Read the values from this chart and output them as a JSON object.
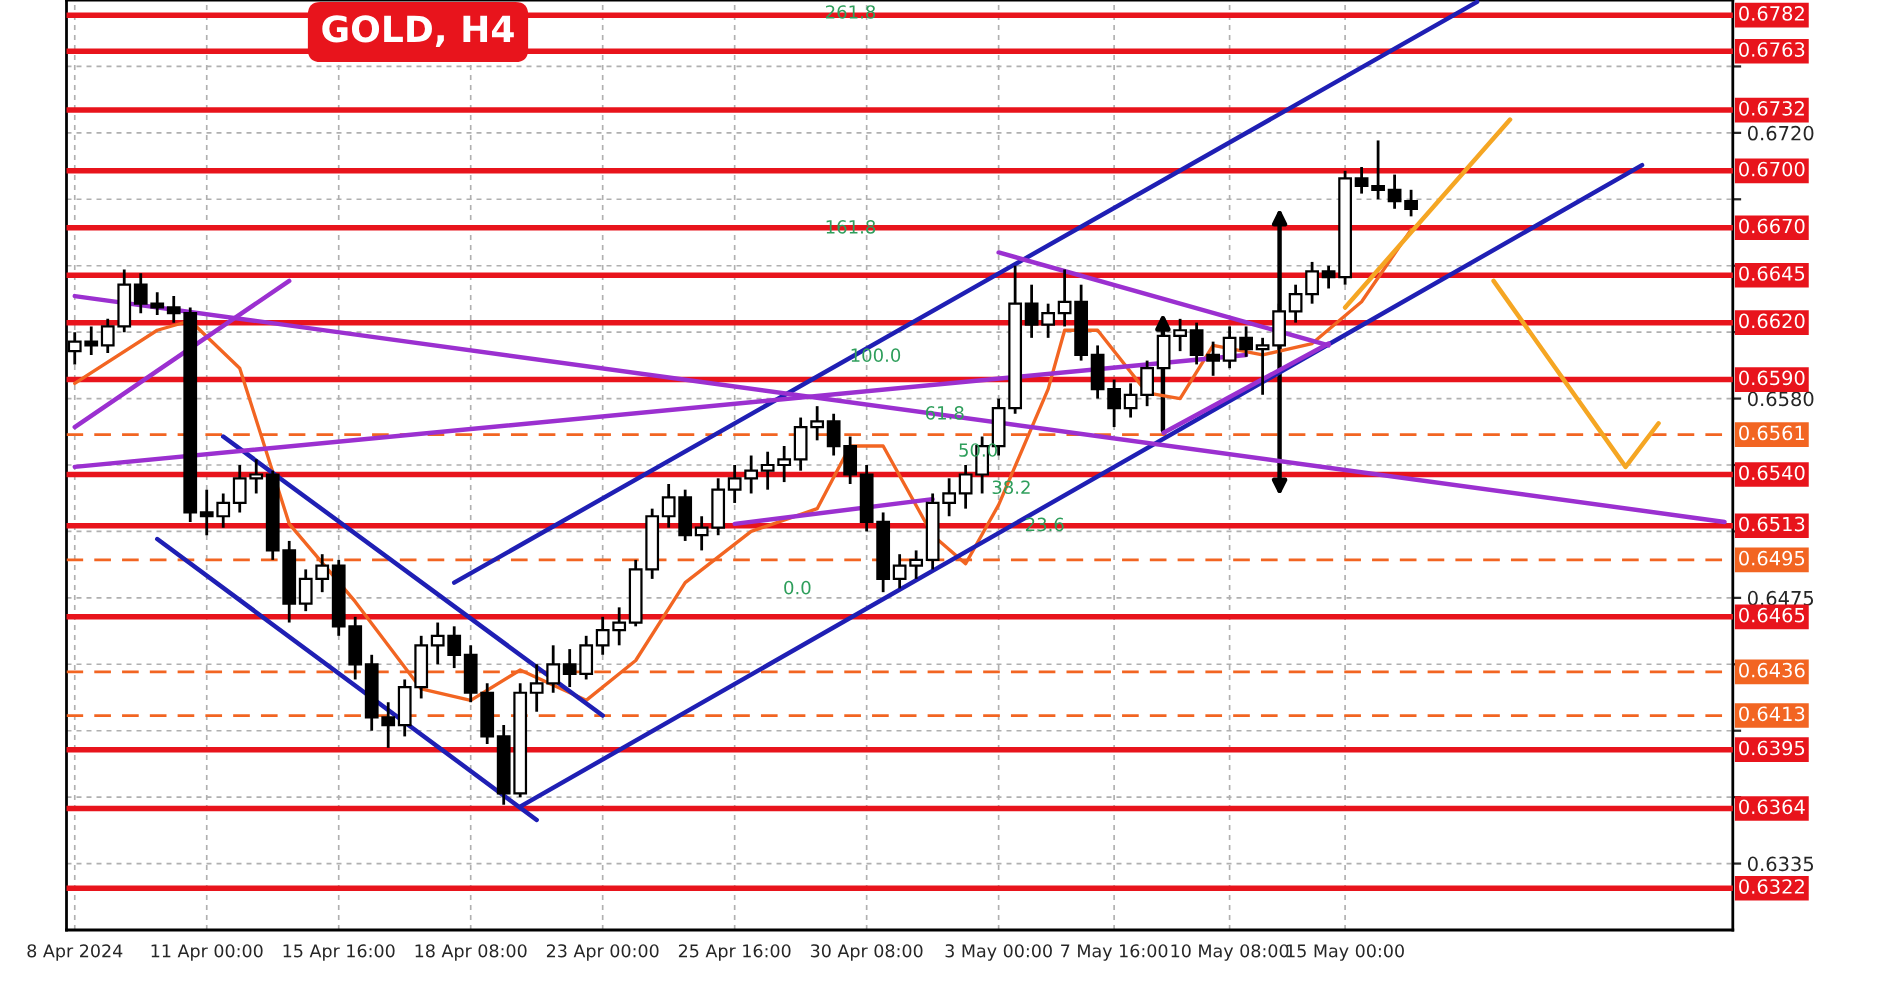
{
  "chart_data": {
    "type": "candlestick",
    "title": "GOLD, H4",
    "categories": [
      "8 Apr 2024",
      null,
      null,
      null,
      null,
      null,
      null,
      null,
      "11 Apr 00:00",
      null,
      null,
      null,
      null,
      null,
      null,
      null,
      "15 Apr 16:00",
      null,
      null,
      null,
      null,
      null,
      null,
      null,
      "18 Apr 08:00",
      null,
      null,
      null,
      null,
      null,
      null,
      null,
      "23 Apr 00:00",
      null,
      null,
      null,
      null,
      null,
      null,
      null,
      "25 Apr 16:00",
      null,
      null,
      null,
      null,
      null,
      null,
      null,
      "30 Apr 08:00",
      null,
      null,
      null,
      null,
      null,
      null,
      null,
      "3 May 00:00",
      null,
      null,
      null,
      null,
      null,
      null,
      "7 May 16:00",
      null,
      null,
      null,
      null,
      null,
      null,
      "10 May 08:00",
      null,
      null,
      null,
      null,
      null,
      null,
      "15 May 00:00",
      null,
      null,
      null,
      null,
      null,
      null,
      null,
      null,
      null,
      null,
      null,
      null,
      null,
      null,
      null,
      null,
      null,
      null,
      null,
      null,
      null,
      null,
      null
    ],
    "ylim": [
      0.63,
      0.679
    ],
    "yticks": [
      0.6335,
      {
        "value": 0.637,
        "label": null
      },
      {
        "value": 0.6405,
        "label": null
      },
      {
        "value": 0.644,
        "label": null
      },
      0.6475,
      {
        "value": 0.651,
        "label": null
      },
      {
        "value": 0.6545,
        "label": null
      },
      {
        "value": 0.658,
        "label": "0.6580"
      },
      {
        "value": 0.6615,
        "label": null
      },
      {
        "value": 0.665,
        "label": null
      },
      {
        "value": 0.6685,
        "label": null
      },
      {
        "value": 0.672,
        "label": "0.6720"
      },
      {
        "value": 0.6755,
        "label": null
      }
    ],
    "grid": true,
    "series": [
      {
        "type": "candlestick",
        "color": "#000000",
        "ohlc": [
          [
            0.6605,
            0.6615,
            0.6598,
            0.661
          ],
          [
            0.661,
            0.6618,
            0.6603,
            0.6608
          ],
          [
            0.6608,
            0.6622,
            0.6604,
            0.6618
          ],
          [
            0.6618,
            0.6648,
            0.6615,
            0.664
          ],
          [
            0.664,
            0.6646,
            0.6625,
            0.663
          ],
          [
            0.663,
            0.6636,
            0.6624,
            0.6628
          ],
          [
            0.6628,
            0.6634,
            0.662,
            0.6625
          ],
          [
            0.6625,
            0.6628,
            0.6515,
            0.652
          ],
          [
            0.652,
            0.6532,
            0.6508,
            0.6518
          ],
          [
            0.6518,
            0.653,
            0.6512,
            0.6525
          ],
          [
            0.6525,
            0.6545,
            0.652,
            0.6538
          ],
          [
            0.6538,
            0.6548,
            0.653,
            0.654
          ],
          [
            0.654,
            0.6542,
            0.6495,
            0.65
          ],
          [
            0.65,
            0.6505,
            0.6462,
            0.6472
          ],
          [
            0.6472,
            0.649,
            0.6468,
            0.6485
          ],
          [
            0.6485,
            0.6498,
            0.6478,
            0.6492
          ],
          [
            0.6492,
            0.6495,
            0.6455,
            0.646
          ],
          [
            0.646,
            0.6465,
            0.6432,
            0.644
          ],
          [
            0.644,
            0.6445,
            0.6405,
            0.6412
          ],
          [
            0.6412,
            0.642,
            0.6396,
            0.6408
          ],
          [
            0.6408,
            0.6432,
            0.6402,
            0.6428
          ],
          [
            0.6428,
            0.6455,
            0.6422,
            0.645
          ],
          [
            0.645,
            0.6462,
            0.644,
            0.6455
          ],
          [
            0.6455,
            0.646,
            0.6438,
            0.6445
          ],
          [
            0.6445,
            0.645,
            0.642,
            0.6425
          ],
          [
            0.6425,
            0.643,
            0.6398,
            0.6402
          ],
          [
            0.6402,
            0.6408,
            0.6366,
            0.6372
          ],
          [
            0.6372,
            0.643,
            0.637,
            0.6425
          ],
          [
            0.6425,
            0.644,
            0.6415,
            0.643
          ],
          [
            0.643,
            0.645,
            0.6425,
            0.644
          ],
          [
            0.644,
            0.6448,
            0.6428,
            0.6435
          ],
          [
            0.6435,
            0.6455,
            0.6432,
            0.645
          ],
          [
            0.645,
            0.6465,
            0.6445,
            0.6458
          ],
          [
            0.6458,
            0.647,
            0.645,
            0.6462
          ],
          [
            0.6462,
            0.6495,
            0.646,
            0.649
          ],
          [
            0.649,
            0.6522,
            0.6485,
            0.6518
          ],
          [
            0.6518,
            0.6535,
            0.6512,
            0.6528
          ],
          [
            0.6528,
            0.6532,
            0.6505,
            0.6508
          ],
          [
            0.6508,
            0.6518,
            0.65,
            0.6512
          ],
          [
            0.6512,
            0.6538,
            0.6508,
            0.6532
          ],
          [
            0.6532,
            0.6545,
            0.6525,
            0.6538
          ],
          [
            0.6538,
            0.655,
            0.653,
            0.6542
          ],
          [
            0.6542,
            0.6552,
            0.6532,
            0.6545
          ],
          [
            0.6545,
            0.6555,
            0.6536,
            0.6548
          ],
          [
            0.6548,
            0.657,
            0.6542,
            0.6565
          ],
          [
            0.6565,
            0.6576,
            0.6558,
            0.6568
          ],
          [
            0.6568,
            0.6572,
            0.655,
            0.6555
          ],
          [
            0.6555,
            0.656,
            0.6535,
            0.654
          ],
          [
            0.654,
            0.6545,
            0.651,
            0.6515
          ],
          [
            0.6515,
            0.652,
            0.6478,
            0.6485
          ],
          [
            0.6485,
            0.6498,
            0.648,
            0.6492
          ],
          [
            0.6492,
            0.65,
            0.6485,
            0.6495
          ],
          [
            0.6495,
            0.653,
            0.649,
            0.6525
          ],
          [
            0.6525,
            0.6538,
            0.6518,
            0.653
          ],
          [
            0.653,
            0.6545,
            0.6522,
            0.654
          ],
          [
            0.654,
            0.656,
            0.653,
            0.6555
          ],
          [
            0.6555,
            0.658,
            0.655,
            0.6575
          ],
          [
            0.6575,
            0.665,
            0.6572,
            0.663
          ],
          [
            0.663,
            0.664,
            0.6612,
            0.6619
          ],
          [
            0.6619,
            0.663,
            0.6612,
            0.6625
          ],
          [
            0.6625,
            0.6648,
            0.6618,
            0.6631
          ],
          [
            0.6631,
            0.664,
            0.66,
            0.6603
          ],
          [
            0.6603,
            0.6608,
            0.658,
            0.6585
          ],
          [
            0.6585,
            0.659,
            0.6565,
            0.6575
          ],
          [
            0.6575,
            0.6588,
            0.657,
            0.6582
          ],
          [
            0.6582,
            0.66,
            0.6576,
            0.6596
          ],
          [
            0.6596,
            0.6618,
            0.6592,
            0.6613
          ],
          [
            0.6613,
            0.6622,
            0.6605,
            0.6616
          ],
          [
            0.6616,
            0.662,
            0.6598,
            0.6603
          ],
          [
            0.6603,
            0.661,
            0.6592,
            0.66
          ],
          [
            0.66,
            0.6618,
            0.6596,
            0.6612
          ],
          [
            0.6612,
            0.6618,
            0.6602,
            0.6606
          ],
          [
            0.6606,
            0.6612,
            0.6582,
            0.6608
          ],
          [
            0.6608,
            0.663,
            0.6604,
            0.6626
          ],
          [
            0.6626,
            0.664,
            0.662,
            0.6635
          ],
          [
            0.6635,
            0.6652,
            0.663,
            0.6647
          ],
          [
            0.6647,
            0.665,
            0.6638,
            0.6644
          ],
          [
            0.6644,
            0.67,
            0.664,
            0.6696
          ],
          [
            0.6696,
            0.6702,
            0.6688,
            0.6692
          ],
          [
            0.6692,
            0.6716,
            0.6685,
            0.669
          ],
          [
            0.669,
            0.6698,
            0.668,
            0.6684
          ],
          [
            0.6684,
            0.669,
            0.6676,
            0.668
          ],
          null,
          null,
          null,
          null,
          null,
          null,
          null,
          null,
          null,
          null,
          null,
          null,
          null,
          null,
          null,
          null,
          null,
          null,
          null
        ]
      },
      {
        "type": "line",
        "color": "#f26522",
        "values": [
          0.6588,
          null,
          null,
          null,
          null,
          0.6616,
          null,
          0.6621,
          null,
          null,
          0.6596,
          null,
          null,
          0.6514,
          null,
          null,
          null,
          0.6473,
          null,
          null,
          null,
          0.6427,
          null,
          null,
          0.6421,
          null,
          null,
          0.6437,
          null,
          null,
          null,
          0.6421,
          null,
          null,
          0.6442,
          null,
          null,
          0.6483,
          null,
          null,
          null,
          0.651,
          null,
          null,
          null,
          0.6522,
          null,
          0.6555,
          null,
          0.6555,
          null,
          null,
          0.6508,
          null,
          0.6493,
          null,
          0.6524,
          null,
          null,
          0.6585,
          0.6616,
          null,
          0.6616,
          null,
          null,
          0.6583,
          null,
          0.658,
          null,
          0.6608,
          null,
          null,
          0.6603,
          null,
          null,
          0.6609,
          null,
          null,
          0.6631,
          null,
          null,
          0.6669,
          null,
          null,
          null,
          null,
          null,
          null,
          null,
          null,
          null,
          null,
          null,
          null,
          null,
          null,
          null,
          null,
          null,
          null,
          null
        ]
      },
      {
        "type": "line",
        "color": "#1f1fb4",
        "values": [
          null,
          null,
          null,
          null,
          null,
          0.6506,
          null,
          null,
          null,
          null,
          null,
          null,
          null,
          null,
          null,
          null,
          null,
          null,
          null,
          null,
          null,
          null,
          null,
          null,
          null,
          null,
          null,
          null,
          0.6358,
          null,
          null,
          null,
          null,
          null,
          null,
          null,
          null,
          null,
          null,
          null,
          null,
          null,
          null,
          null,
          null,
          null,
          null,
          null,
          null,
          null,
          null,
          null,
          null,
          null,
          null,
          null,
          null,
          null,
          null,
          null,
          null,
          null,
          null,
          null,
          null,
          null,
          null,
          null,
          null,
          null,
          null,
          null,
          null,
          null,
          null,
          null,
          null,
          null,
          null,
          null,
          null,
          null,
          null,
          null,
          null,
          null,
          null,
          null,
          null,
          null,
          null,
          null,
          null,
          null,
          null,
          null,
          null,
          null,
          null,
          null,
          null
        ]
      },
      {
        "type": "line",
        "color": "#1f1fb4",
        "values": [
          null,
          null,
          null,
          null,
          null,
          null,
          null,
          null,
          null,
          0.656,
          null,
          null,
          null,
          null,
          null,
          null,
          null,
          null,
          null,
          null,
          null,
          null,
          null,
          null,
          null,
          null,
          null,
          null,
          null,
          null,
          null,
          null,
          0.6413,
          null,
          null,
          null,
          null,
          null,
          null,
          null,
          null,
          null,
          null,
          null,
          null,
          null,
          null,
          null,
          null,
          null,
          null,
          null,
          null,
          null,
          null,
          null,
          null,
          null,
          null,
          null,
          null,
          null,
          null,
          null,
          null,
          null,
          null,
          null,
          null,
          null,
          null,
          null,
          null,
          null,
          null,
          null,
          null,
          null,
          null,
          null,
          null,
          null,
          null,
          null,
          null,
          null,
          null,
          null,
          null,
          null,
          null,
          null,
          null,
          null,
          null,
          null,
          null,
          null,
          null,
          null,
          null
        ]
      },
      {
        "type": "line",
        "color": "#1f1fb4",
        "values": [
          null,
          null,
          null,
          null,
          null,
          null,
          null,
          null,
          null,
          null,
          null,
          null,
          null,
          null,
          null,
          null,
          null,
          null,
          null,
          null,
          null,
          null,
          null,
          0.6483,
          null,
          null,
          null,
          null,
          null,
          null,
          null,
          null,
          null,
          null,
          null,
          null,
          null,
          null,
          null,
          null,
          null,
          null,
          null,
          null,
          null,
          null,
          null,
          null,
          null,
          null,
          null,
          null,
          null,
          null,
          null,
          null,
          null,
          null,
          null,
          null,
          null,
          null,
          null,
          null,
          null,
          null,
          null,
          null,
          null,
          null,
          null,
          null,
          null,
          null,
          null,
          null,
          null,
          null,
          null,
          null,
          null,
          null,
          null,
          null,
          null,
          0.6789,
          null,
          null,
          null,
          null,
          null,
          null,
          null,
          null,
          null,
          null,
          null,
          null,
          null,
          null,
          null
        ]
      },
      {
        "type": "line",
        "color": "#1f1fb4",
        "values": [
          null,
          null,
          null,
          null,
          null,
          null,
          null,
          null,
          null,
          null,
          null,
          null,
          null,
          null,
          null,
          null,
          null,
          null,
          null,
          null,
          null,
          null,
          null,
          null,
          null,
          null,
          null,
          0.6365,
          null,
          null,
          null,
          null,
          null,
          null,
          null,
          null,
          null,
          null,
          null,
          null,
          null,
          null,
          null,
          null,
          null,
          null,
          null,
          null,
          null,
          null,
          null,
          null,
          null,
          null,
          null,
          null,
          null,
          null,
          null,
          null,
          null,
          null,
          null,
          null,
          null,
          null,
          null,
          null,
          null,
          null,
          null,
          null,
          null,
          null,
          null,
          null,
          null,
          null,
          null,
          null,
          null,
          null,
          null,
          null,
          null,
          null,
          null,
          null,
          null,
          null,
          null,
          null,
          null,
          null,
          null,
          0.6703,
          null,
          null,
          null,
          null,
          null
        ]
      },
      {
        "type": "line",
        "color": "#9b30d0",
        "values": [
          0.6634,
          null,
          null,
          null,
          null,
          null,
          null,
          null,
          null,
          null,
          null,
          null,
          null,
          null,
          null,
          null,
          null,
          null,
          null,
          null,
          null,
          null,
          null,
          null,
          null,
          null,
          null,
          null,
          null,
          null,
          null,
          null,
          null,
          null,
          null,
          null,
          null,
          null,
          null,
          null,
          null,
          null,
          null,
          null,
          null,
          null,
          null,
          null,
          null,
          null,
          null,
          null,
          null,
          null,
          null,
          null,
          null,
          null,
          null,
          null,
          null,
          null,
          null,
          null,
          null,
          null,
          null,
          null,
          null,
          null,
          null,
          null,
          null,
          null,
          null,
          null,
          null,
          null,
          null,
          null,
          null,
          null,
          null,
          null,
          null,
          null,
          null,
          null,
          null,
          null,
          null,
          null,
          null,
          null,
          null,
          null,
          null,
          null,
          null,
          null,
          0.6515
        ]
      },
      {
        "type": "line",
        "color": "#9b30d0",
        "values": [
          0.6544,
          null,
          null,
          null,
          null,
          null,
          null,
          null,
          null,
          null,
          null,
          null,
          null,
          null,
          null,
          null,
          null,
          null,
          null,
          null,
          null,
          null,
          null,
          null,
          null,
          null,
          null,
          null,
          null,
          null,
          null,
          null,
          null,
          null,
          null,
          null,
          null,
          null,
          null,
          null,
          null,
          null,
          null,
          null,
          null,
          null,
          null,
          null,
          null,
          null,
          null,
          null,
          null,
          null,
          null,
          null,
          null,
          null,
          null,
          null,
          null,
          null,
          null,
          null,
          null,
          null,
          null,
          null,
          null,
          null,
          null,
          0.6603,
          null,
          null,
          null,
          null,
          null,
          null,
          null,
          null,
          null,
          null,
          null,
          null,
          null,
          null,
          null,
          null,
          null,
          null,
          null,
          null,
          null,
          null,
          null,
          null,
          null,
          null,
          null,
          null,
          null
        ]
      },
      {
        "type": "line",
        "color": "#9b30d0",
        "values": [
          0.6565,
          null,
          null,
          null,
          null,
          null,
          null,
          null,
          null,
          null,
          null,
          null,
          null,
          0.6642,
          null,
          null,
          null,
          null,
          null,
          null,
          null,
          null,
          null,
          null,
          null,
          null,
          null,
          null,
          null,
          null,
          null,
          null,
          null,
          null,
          null,
          null,
          null,
          null,
          null,
          null,
          null,
          null,
          null,
          null,
          null,
          null,
          null,
          null,
          null,
          null,
          null,
          null,
          null,
          null,
          null,
          null,
          null,
          null,
          null,
          null,
          null,
          null,
          null,
          null,
          null,
          null,
          null,
          null,
          null,
          null,
          null,
          null,
          null,
          null,
          null,
          null,
          null,
          null,
          null,
          null,
          null,
          null,
          null,
          null,
          null,
          null,
          null,
          null,
          null,
          null,
          null,
          null,
          null,
          null,
          null,
          null,
          null,
          null,
          null,
          null,
          null
        ]
      },
      {
        "type": "line",
        "color": "#9b30d0",
        "values": [
          null,
          null,
          null,
          null,
          null,
          null,
          null,
          null,
          null,
          null,
          null,
          null,
          null,
          null,
          null,
          null,
          null,
          null,
          null,
          null,
          null,
          null,
          null,
          null,
          null,
          null,
          null,
          null,
          null,
          null,
          null,
          null,
          null,
          null,
          null,
          null,
          null,
          null,
          null,
          null,
          null,
          null,
          null,
          null,
          null,
          null,
          null,
          null,
          null,
          null,
          null,
          null,
          null,
          null,
          null,
          null,
          0.6657,
          null,
          null,
          null,
          null,
          null,
          null,
          null,
          null,
          null,
          null,
          null,
          null,
          null,
          null,
          null,
          null,
          null,
          null,
          null,
          0.6608,
          null,
          null,
          null,
          null,
          null,
          null,
          null,
          null,
          null,
          null,
          null,
          null,
          null,
          null,
          null,
          null,
          null,
          null,
          null,
          null,
          null,
          null,
          null,
          null
        ]
      },
      {
        "type": "line",
        "color": "#9b30d0",
        "values": [
          null,
          null,
          null,
          null,
          null,
          null,
          null,
          null,
          null,
          null,
          null,
          null,
          null,
          null,
          null,
          null,
          null,
          null,
          null,
          null,
          null,
          null,
          null,
          null,
          null,
          null,
          null,
          null,
          null,
          null,
          null,
          null,
          null,
          null,
          null,
          null,
          null,
          null,
          null,
          null,
          null,
          null,
          null,
          null,
          null,
          null,
          null,
          null,
          null,
          null,
          null,
          null,
          null,
          null,
          null,
          null,
          null,
          null,
          null,
          null,
          null,
          null,
          null,
          null,
          null,
          null,
          0.6562,
          null,
          null,
          null,
          null,
          null,
          null,
          null,
          null,
          null,
          0.6609,
          null,
          null,
          null,
          null,
          null,
          null,
          null,
          null,
          null,
          null,
          null,
          null,
          null,
          null,
          null,
          null,
          null,
          null,
          null,
          null,
          null,
          null,
          null,
          null
        ]
      },
      {
        "type": "line",
        "color": "#9b30d0",
        "values": [
          null,
          null,
          null,
          null,
          null,
          null,
          null,
          null,
          null,
          null,
          null,
          null,
          null,
          null,
          null,
          null,
          null,
          null,
          null,
          null,
          null,
          null,
          null,
          null,
          null,
          null,
          null,
          null,
          null,
          null,
          null,
          null,
          null,
          null,
          null,
          null,
          null,
          null,
          null,
          null,
          0.6514,
          null,
          null,
          null,
          null,
          null,
          null,
          null,
          null,
          null,
          null,
          null,
          0.6527,
          null,
          null,
          null,
          null,
          null,
          null,
          null,
          null,
          null,
          null,
          null,
          null,
          null,
          null,
          null,
          null,
          null,
          null,
          null,
          null,
          null,
          null,
          null,
          null,
          null,
          null,
          null,
          null,
          null,
          null,
          null,
          null,
          null,
          null,
          null,
          null,
          null,
          null,
          null,
          null,
          null,
          null,
          null,
          null,
          null,
          null,
          null,
          null
        ]
      },
      {
        "type": "line",
        "color": "#f5a623",
        "values": [
          null,
          null,
          null,
          null,
          null,
          null,
          null,
          null,
          null,
          null,
          null,
          null,
          null,
          null,
          null,
          null,
          null,
          null,
          null,
          null,
          null,
          null,
          null,
          null,
          null,
          null,
          null,
          null,
          null,
          null,
          null,
          null,
          null,
          null,
          null,
          null,
          null,
          null,
          null,
          null,
          null,
          null,
          null,
          null,
          null,
          null,
          null,
          null,
          null,
          null,
          null,
          null,
          null,
          null,
          null,
          null,
          null,
          null,
          null,
          null,
          null,
          null,
          null,
          null,
          null,
          null,
          null,
          null,
          null,
          null,
          null,
          null,
          null,
          null,
          null,
          null,
          null,
          0.6628,
          null,
          null,
          null,
          null,
          null,
          null,
          null,
          null,
          null,
          0.6727,
          null,
          null,
          null,
          null,
          null,
          null,
          null,
          null,
          null,
          null,
          null,
          null,
          null
        ]
      },
      {
        "type": "line",
        "color": "#f5a623",
        "values": [
          null,
          null,
          null,
          null,
          null,
          null,
          null,
          null,
          null,
          null,
          null,
          null,
          null,
          null,
          null,
          null,
          null,
          null,
          null,
          null,
          null,
          null,
          null,
          null,
          null,
          null,
          null,
          null,
          null,
          null,
          null,
          null,
          null,
          null,
          null,
          null,
          null,
          null,
          null,
          null,
          null,
          null,
          null,
          null,
          null,
          null,
          null,
          null,
          null,
          null,
          null,
          null,
          null,
          null,
          null,
          null,
          null,
          null,
          null,
          null,
          null,
          null,
          null,
          null,
          null,
          null,
          null,
          null,
          null,
          null,
          null,
          null,
          null,
          null,
          null,
          null,
          null,
          null,
          null,
          null,
          null,
          null,
          null,
          null,
          null,
          null,
          0.6642,
          null,
          null,
          null,
          null,
          null,
          null,
          null,
          0.6544,
          null,
          0.6567,
          null,
          null,
          null,
          null
        ]
      }
    ],
    "ref_lines": [
      {
        "axis": "y",
        "value": 0.6782,
        "label": "0.6782",
        "color": "#e8141c",
        "line_style": "solid"
      },
      {
        "axis": "y",
        "value": 0.6763,
        "label": "0.6763",
        "color": "#e8141c",
        "line_style": "solid"
      },
      {
        "axis": "y",
        "value": 0.6732,
        "label": "0.6732",
        "color": "#e8141c",
        "line_style": "solid"
      },
      {
        "axis": "y",
        "value": 0.67,
        "label": "0.6700",
        "color": "#e8141c",
        "line_style": "solid"
      },
      {
        "axis": "y",
        "value": 0.667,
        "label": "0.6670",
        "color": "#e8141c",
        "line_style": "solid"
      },
      {
        "axis": "y",
        "value": 0.6645,
        "label": "0.6645",
        "color": "#e8141c",
        "line_style": "solid"
      },
      {
        "axis": "y",
        "value": 0.662,
        "label": "0.6620",
        "color": "#e8141c",
        "line_style": "solid"
      },
      {
        "axis": "y",
        "value": 0.659,
        "label": "0.6590",
        "color": "#e8141c",
        "line_style": "solid"
      },
      {
        "axis": "y",
        "value": 0.6561,
        "label": "0.6561",
        "color": "#f26522",
        "line_style": "dashed"
      },
      {
        "axis": "y",
        "value": 0.654,
        "label": "0.6540",
        "color": "#e8141c",
        "line_style": "solid"
      },
      {
        "axis": "y",
        "value": 0.6513,
        "label": "0.6513",
        "color": "#e8141c",
        "line_style": "solid"
      },
      {
        "axis": "y",
        "value": 0.6495,
        "label": "0.6495",
        "color": "#f26522",
        "line_style": "dashed"
      },
      {
        "axis": "y",
        "value": 0.6465,
        "label": "0.6465",
        "color": "#e8141c",
        "line_style": "solid"
      },
      {
        "axis": "y",
        "value": 0.6436,
        "label": "0.6436",
        "color": "#f26522",
        "line_style": "dashed"
      },
      {
        "axis": "y",
        "value": 0.6413,
        "label": "0.6413",
        "color": "#f26522",
        "line_style": "dashed"
      },
      {
        "axis": "y",
        "value": 0.6395,
        "label": "0.6395",
        "color": "#e8141c",
        "line_style": "solid"
      },
      {
        "axis": "y",
        "value": 0.6364,
        "label": "0.6364",
        "color": "#e8141c",
        "line_style": "solid"
      },
      {
        "axis": "y",
        "value": 0.6322,
        "label": "0.6322",
        "color": "#e8141c",
        "line_style": "solid"
      }
    ],
    "annotations": [
      "261.8",
      "161.8",
      "100.0",
      "61.8",
      "50.0",
      "38.2",
      "23.6",
      "0.0"
    ]
  }
}
